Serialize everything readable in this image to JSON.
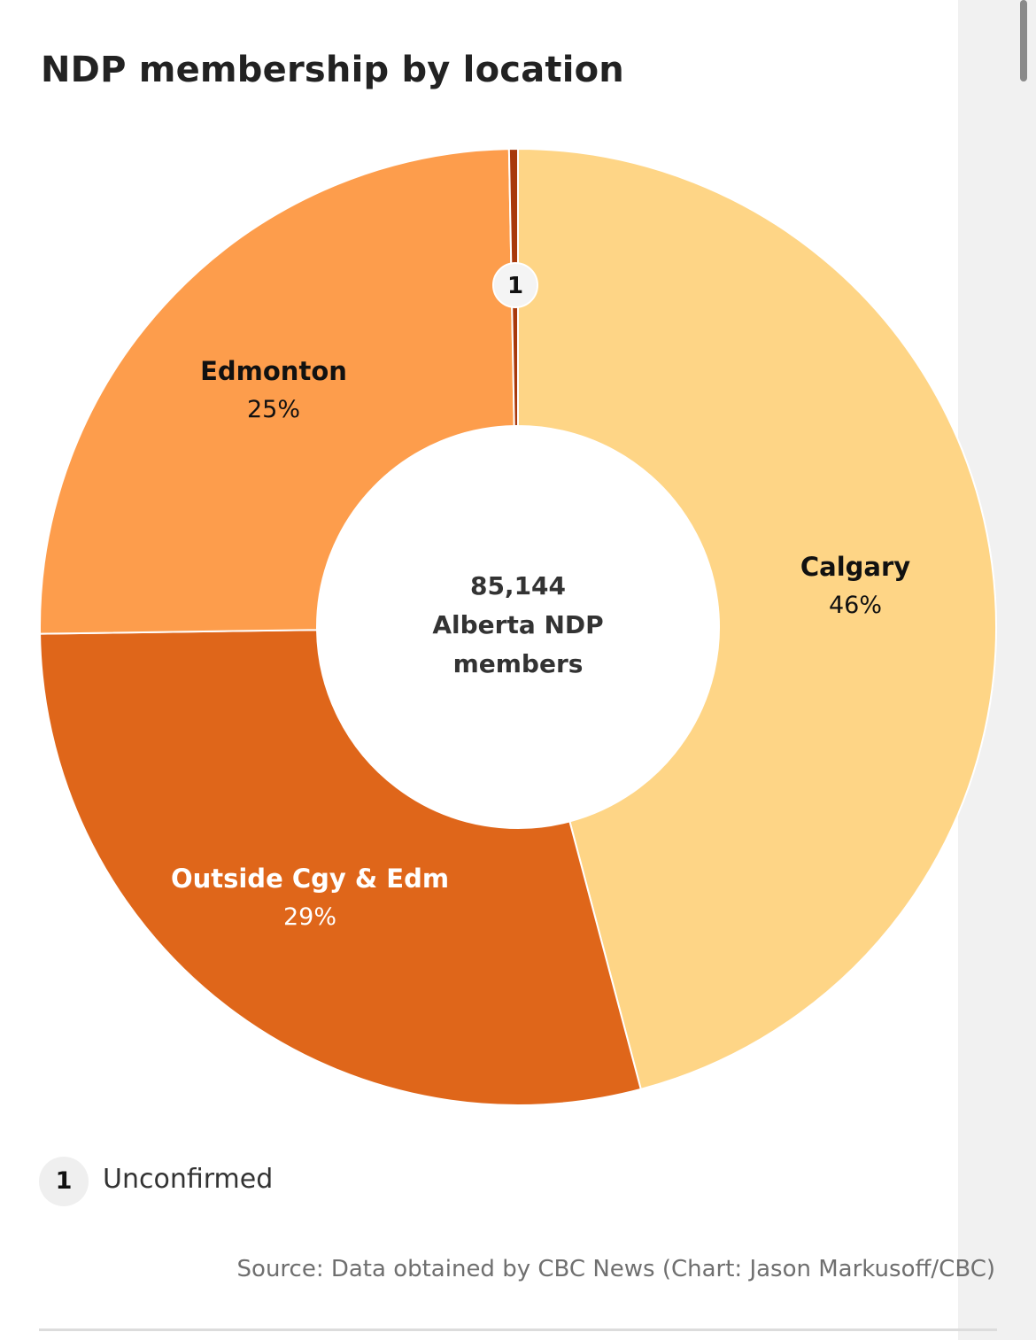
{
  "chart_data": {
    "type": "pie",
    "title": "NDP membership by location",
    "center_label": {
      "value": "85,144",
      "line2": "Alberta NDP",
      "line3": "members"
    },
    "slices": [
      {
        "name": "Calgary",
        "value": 46,
        "label": "46%",
        "color": "#fed586"
      },
      {
        "name": "Outside Cgy & Edm",
        "value": 29,
        "label": "29%",
        "color": "#df661a"
      },
      {
        "name": "Edmonton",
        "value": 25,
        "label": "25%",
        "color": "#fd9d4c"
      },
      {
        "name": "Unconfirmed",
        "value": 0.3,
        "label": "",
        "color": "#a8390c",
        "footnote": "1"
      }
    ],
    "footnotes": [
      {
        "marker": "1",
        "text": "Unconfirmed"
      }
    ],
    "source": "Source: Data obtained by CBC News (Chart: Jason Markusoff/CBC)"
  }
}
